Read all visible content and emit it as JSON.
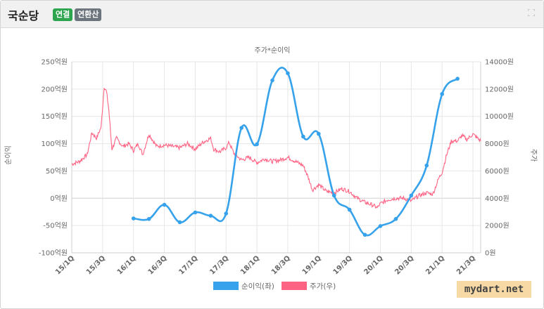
{
  "header": {
    "company": "국순당",
    "badge_consolidated": "연결",
    "badge_annualized": "연환산",
    "expand_icon": "expand-icon"
  },
  "watermark": "mydart.net",
  "colors": {
    "profit": "#36a2eb",
    "price": "#ff6384",
    "grid": "#e6e6e6",
    "axis_text": "#666666"
  },
  "chart_data": {
    "type": "line",
    "title": "주가*순이익",
    "ylabel_left": "순이익",
    "ylabel_right": "주가",
    "y_left": {
      "min": -100,
      "max": 250,
      "step": 50,
      "ticks": [
        "-100억원",
        "-50억원",
        "0억원",
        "50억원",
        "100억원",
        "150억원",
        "200억원",
        "250억원"
      ]
    },
    "y_right": {
      "min": 0,
      "max": 14000,
      "step": 2000,
      "ticks": [
        "0원",
        "2000원",
        "4000원",
        "6000원",
        "8000원",
        "10000원",
        "12000원",
        "14000원"
      ]
    },
    "x_ticks": [
      "15/1Q",
      "15/3Q",
      "16/1Q",
      "16/3Q",
      "17/1Q",
      "17/3Q",
      "18/1Q",
      "18/3Q",
      "19/1Q",
      "19/3Q",
      "20/1Q",
      "20/3Q",
      "21/1Q",
      "21/3Q"
    ],
    "x_range": [
      0,
      26.5
    ],
    "legend": {
      "position": "bottom",
      "items": [
        {
          "name": "순이익(좌)",
          "color": "#36a2eb"
        },
        {
          "name": "주가(우)",
          "color": "#ff6384"
        }
      ]
    },
    "grid": true,
    "series": [
      {
        "name": "순이익(좌)",
        "axis": "left",
        "smooth": true,
        "points": [
          {
            "x": 4,
            "y": -37
          },
          {
            "x": 5,
            "y": -38
          },
          {
            "x": 6,
            "y": -12
          },
          {
            "x": 7,
            "y": -44
          },
          {
            "x": 8,
            "y": -26
          },
          {
            "x": 9,
            "y": -32
          },
          {
            "x": 10,
            "y": -28
          },
          {
            "x": 11,
            "y": 129
          },
          {
            "x": 12,
            "y": 99
          },
          {
            "x": 13,
            "y": 216
          },
          {
            "x": 14,
            "y": 229
          },
          {
            "x": 15,
            "y": 113
          },
          {
            "x": 16,
            "y": 118
          },
          {
            "x": 17,
            "y": 5
          },
          {
            "x": 18,
            "y": -21
          },
          {
            "x": 19,
            "y": -67
          },
          {
            "x": 20,
            "y": -51
          },
          {
            "x": 21,
            "y": -38
          },
          {
            "x": 22,
            "y": 5
          },
          {
            "x": 23,
            "y": 60
          },
          {
            "x": 24,
            "y": 191
          },
          {
            "x": 25,
            "y": 219
          }
        ]
      },
      {
        "name": "주가(우)",
        "axis": "right",
        "noise": 150,
        "points": [
          {
            "x": 0,
            "y": 6500
          },
          {
            "x": 0.5,
            "y": 6700
          },
          {
            "x": 1,
            "y": 7200
          },
          {
            "x": 1.3,
            "y": 8800
          },
          {
            "x": 1.6,
            "y": 8400
          },
          {
            "x": 1.9,
            "y": 9200
          },
          {
            "x": 2.1,
            "y": 12200
          },
          {
            "x": 2.25,
            "y": 11800
          },
          {
            "x": 2.4,
            "y": 10500
          },
          {
            "x": 2.6,
            "y": 7600
          },
          {
            "x": 2.9,
            "y": 8400
          },
          {
            "x": 3.3,
            "y": 7800
          },
          {
            "x": 3.7,
            "y": 8000
          },
          {
            "x": 4.0,
            "y": 7500
          },
          {
            "x": 4.3,
            "y": 8000
          },
          {
            "x": 4.6,
            "y": 7200
          },
          {
            "x": 5,
            "y": 8700
          },
          {
            "x": 5.5,
            "y": 7800
          },
          {
            "x": 6,
            "y": 7900
          },
          {
            "x": 6.5,
            "y": 7800
          },
          {
            "x": 7,
            "y": 7700
          },
          {
            "x": 7.5,
            "y": 8000
          },
          {
            "x": 8,
            "y": 7600
          },
          {
            "x": 8.5,
            "y": 8100
          },
          {
            "x": 9,
            "y": 8400
          },
          {
            "x": 9.2,
            "y": 7600
          },
          {
            "x": 9.6,
            "y": 7400
          },
          {
            "x": 10,
            "y": 7700
          },
          {
            "x": 10.2,
            "y": 8100
          },
          {
            "x": 10.5,
            "y": 7300
          },
          {
            "x": 11,
            "y": 6800
          },
          {
            "x": 11.5,
            "y": 7000
          },
          {
            "x": 12,
            "y": 6600
          },
          {
            "x": 12.5,
            "y": 6900
          },
          {
            "x": 13,
            "y": 6700
          },
          {
            "x": 13.5,
            "y": 6800
          },
          {
            "x": 14,
            "y": 7000
          },
          {
            "x": 14.5,
            "y": 6700
          },
          {
            "x": 15,
            "y": 6400
          },
          {
            "x": 15.3,
            "y": 5600
          },
          {
            "x": 15.6,
            "y": 4600
          },
          {
            "x": 16,
            "y": 5000
          },
          {
            "x": 16.5,
            "y": 4500
          },
          {
            "x": 17,
            "y": 4400
          },
          {
            "x": 17.5,
            "y": 4700
          },
          {
            "x": 18,
            "y": 4500
          },
          {
            "x": 18.5,
            "y": 4000
          },
          {
            "x": 19,
            "y": 3700
          },
          {
            "x": 19.5,
            "y": 3500
          },
          {
            "x": 19.8,
            "y": 3300
          },
          {
            "x": 20,
            "y": 3600
          },
          {
            "x": 20.5,
            "y": 3900
          },
          {
            "x": 21,
            "y": 4000
          },
          {
            "x": 21.5,
            "y": 4000
          },
          {
            "x": 22,
            "y": 3800
          },
          {
            "x": 22.5,
            "y": 4200
          },
          {
            "x": 23,
            "y": 4400
          },
          {
            "x": 23.4,
            "y": 4300
          },
          {
            "x": 23.8,
            "y": 5500
          },
          {
            "x": 24,
            "y": 5900
          },
          {
            "x": 24.3,
            "y": 7200
          },
          {
            "x": 24.6,
            "y": 8200
          },
          {
            "x": 25,
            "y": 8200
          },
          {
            "x": 25.3,
            "y": 8600
          },
          {
            "x": 25.6,
            "y": 8300
          },
          {
            "x": 26,
            "y": 8700
          },
          {
            "x": 26.5,
            "y": 8200
          }
        ]
      }
    ]
  }
}
